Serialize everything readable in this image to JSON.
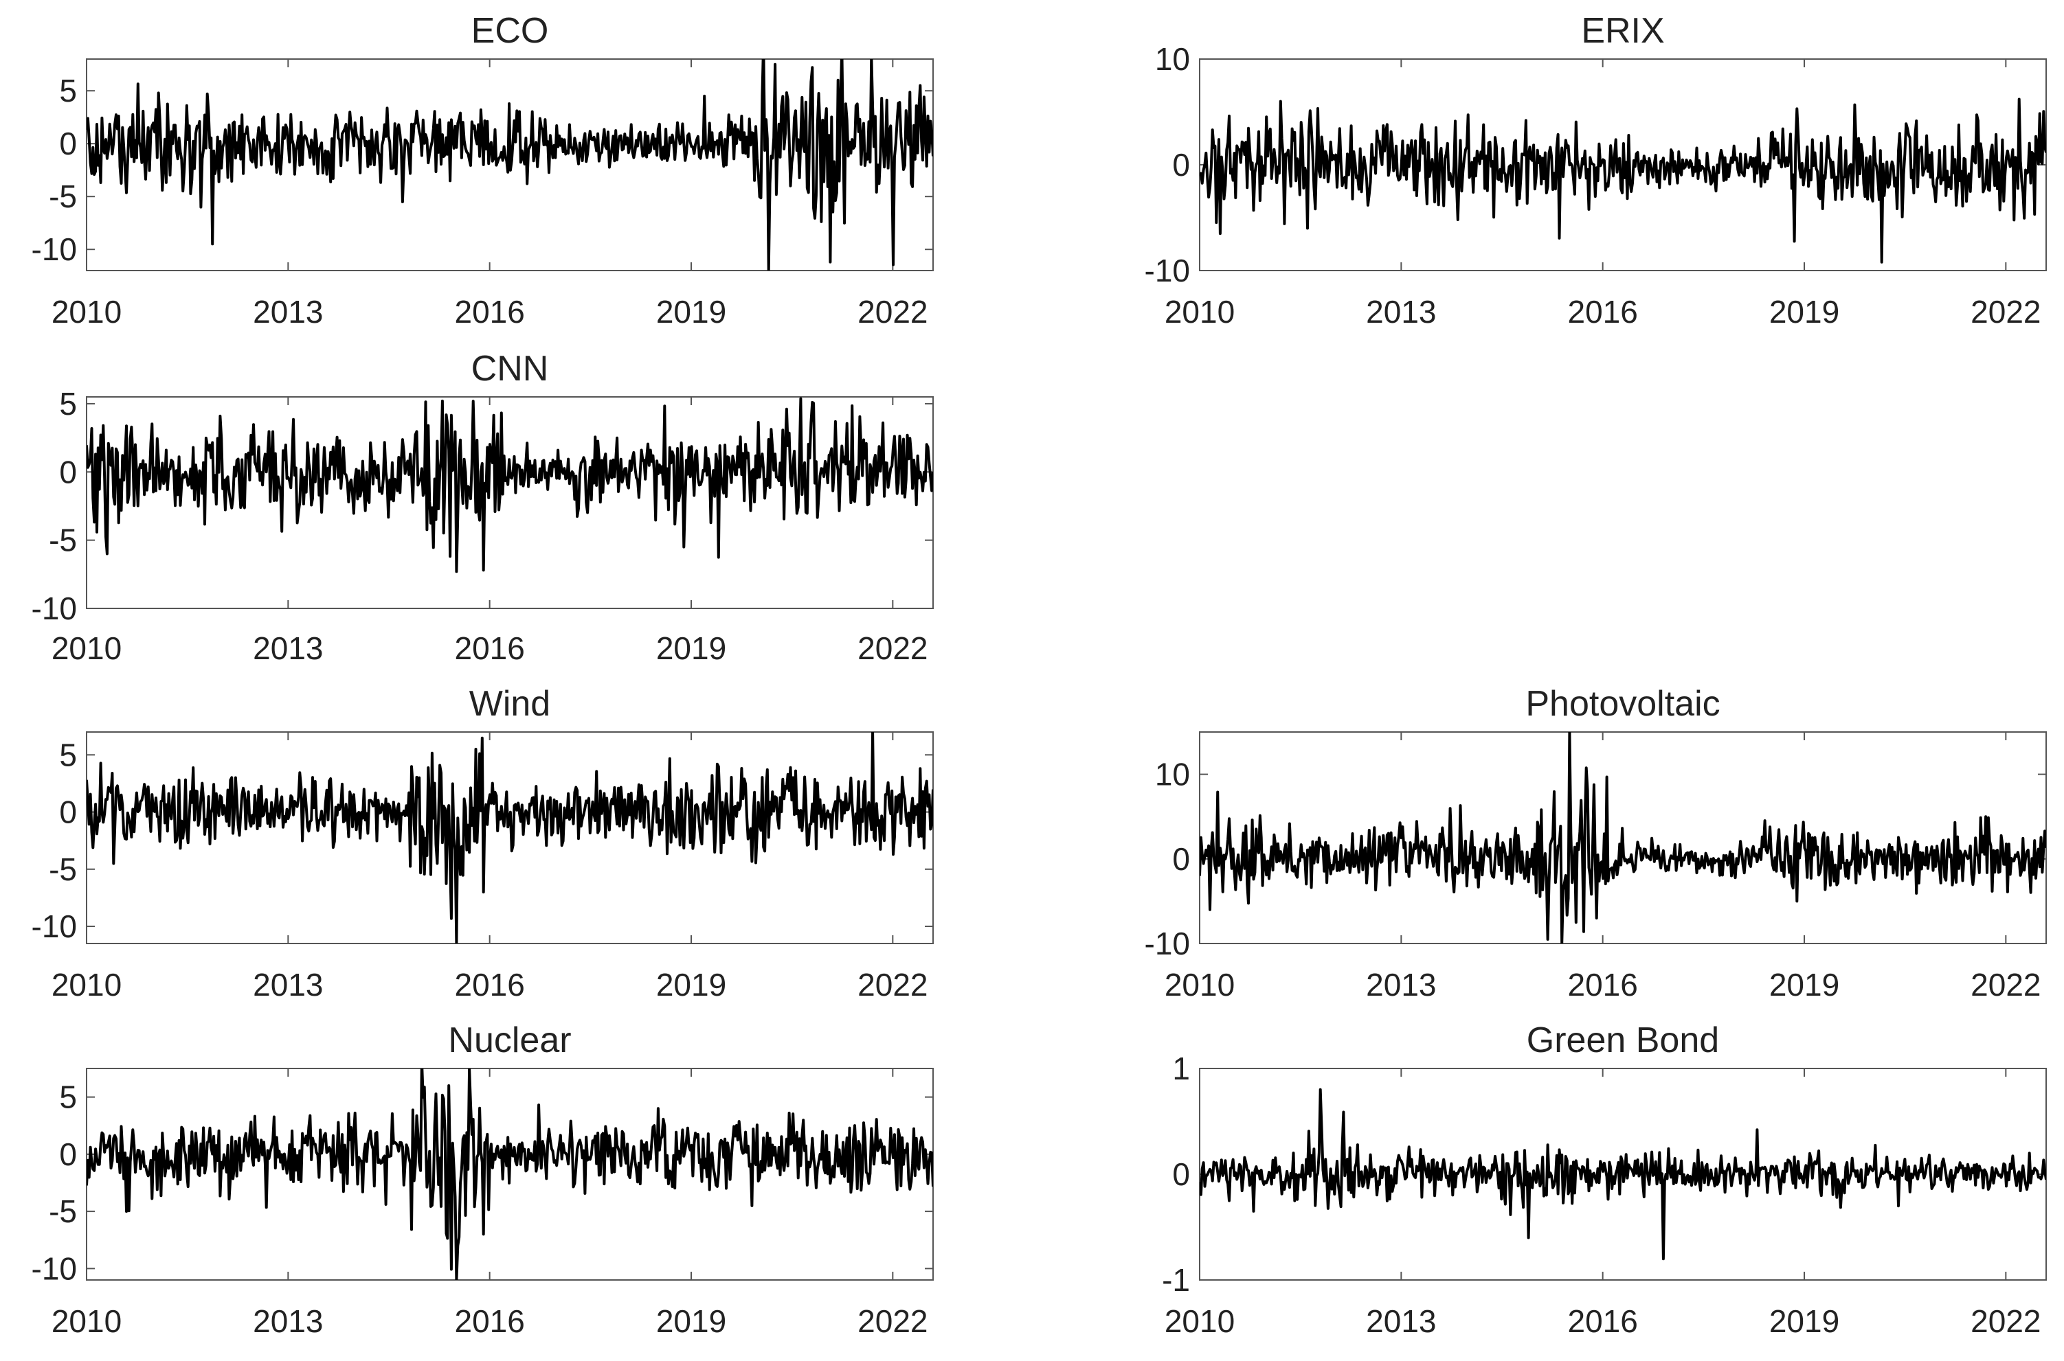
{
  "colors": {
    "line": "#000000",
    "axis": "#555555",
    "text": "#222222",
    "background": "#ffffff"
  },
  "chart_data": [
    {
      "type": "line",
      "title": "ECO",
      "panel": "left-row1",
      "xlim": [
        2010,
        2022.6
      ],
      "ylim": [
        -12,
        8
      ],
      "xticks": [
        "2010",
        "2013",
        "2016",
        "2019",
        "2022"
      ],
      "yticks": [
        "5",
        "0",
        "-5",
        "-10"
      ],
      "series_profile": {
        "base_amplitude": 1.7,
        "volatility_segments": [
          [
            2010,
            2011.5,
            2.2
          ],
          [
            2011.5,
            2012.2,
            2.4
          ],
          [
            2016,
            2016.5,
            2.0
          ],
          [
            2017,
            2019.5,
            1.0
          ],
          [
            2020.0,
            2021.3,
            3.4
          ],
          [
            2021.3,
            2022.6,
            2.6
          ]
        ],
        "extremes": [
          [
            2011.7,
            -6
          ],
          [
            2011.8,
            4.7
          ],
          [
            2014.7,
            -5.5
          ],
          [
            2019.2,
            4.5
          ],
          [
            2020.15,
            -12
          ],
          [
            2020.25,
            7.5
          ],
          [
            2020.8,
            7.2
          ],
          [
            2022.4,
            5.5
          ]
        ]
      }
    },
    {
      "type": "line",
      "title": "ERIX",
      "panel": "right-row1",
      "xlim": [
        2010,
        2022.6
      ],
      "ylim": [
        -10,
        10
      ],
      "xticks": [
        "2010",
        "2013",
        "2016",
        "2019",
        "2022"
      ],
      "yticks": [
        "10",
        "0",
        "-10"
      ],
      "series_profile": {
        "base_amplitude": 1.9,
        "volatility_segments": [
          [
            2010,
            2012,
            2.4
          ],
          [
            2016.5,
            2018.5,
            1.1
          ],
          [
            2020.2,
            2022.6,
            2.3
          ]
        ],
        "extremes": [
          [
            2010.3,
            -6.5
          ],
          [
            2011.2,
            6
          ],
          [
            2011.6,
            -6
          ],
          [
            2018.9,
            5.3
          ],
          [
            2020.15,
            -9.2
          ],
          [
            2022.2,
            6.2
          ]
        ]
      }
    },
    {
      "type": "line",
      "title": "CNN",
      "panel": "left-row2",
      "xlim": [
        2010,
        2022.6
      ],
      "ylim": [
        -10,
        5.5
      ],
      "xticks": [
        "2010",
        "2013",
        "2016",
        "2019",
        "2022"
      ],
      "yticks": [
        "5",
        "0",
        "-5",
        "-10"
      ],
      "series_profile": {
        "base_amplitude": 1.6,
        "volatility_segments": [
          [
            2010,
            2010.8,
            2.4
          ],
          [
            2015.0,
            2016.2,
            3.2
          ],
          [
            2016.2,
            2017.3,
            0.9
          ],
          [
            2020.3,
            2021.5,
            2.2
          ]
        ],
        "extremes": [
          [
            2010.3,
            -6
          ],
          [
            2015.3,
            5.2
          ],
          [
            2015.5,
            -7.3
          ],
          [
            2015.9,
            -7.2
          ],
          [
            2018.9,
            -5.5
          ],
          [
            2020.8,
            5.1
          ]
        ]
      }
    },
    {
      "type": "line",
      "title": "Wind",
      "panel": "left-row3",
      "xlim": [
        2010,
        2022.6
      ],
      "ylim": [
        -11.5,
        7
      ],
      "xticks": [
        "2010",
        "2013",
        "2016",
        "2019",
        "2022"
      ],
      "yticks": [
        "5",
        "0",
        "-5",
        "-10"
      ],
      "series_profile": {
        "base_amplitude": 1.5,
        "volatility_segments": [
          [
            2014.8,
            2015.9,
            3.3
          ],
          [
            2018.5,
            2022.6,
            2.0
          ]
        ],
        "extremes": [
          [
            2010.4,
            -4.5
          ],
          [
            2015.5,
            -11.5
          ],
          [
            2015.8,
            5.5
          ],
          [
            2015.9,
            -7
          ],
          [
            2021.7,
            7
          ],
          [
            2022.4,
            3.8
          ]
        ]
      }
    },
    {
      "type": "line",
      "title": "Photovoltaic",
      "panel": "right-row3",
      "xlim": [
        2010,
        2022.6
      ],
      "ylim": [
        -10,
        15
      ],
      "xticks": [
        "2010",
        "2013",
        "2016",
        "2019",
        "2022"
      ],
      "yticks": [
        "10",
        "0",
        "-10"
      ],
      "series_profile": {
        "base_amplitude": 1.8,
        "volatility_segments": [
          [
            2010,
            2011,
            2.3
          ],
          [
            2015.0,
            2016.1,
            4.5
          ],
          [
            2016.1,
            2018.2,
            1.0
          ],
          [
            2020.5,
            2022.6,
            2.0
          ]
        ],
        "extremes": [
          [
            2015.4,
            -10
          ],
          [
            2015.5,
            15
          ],
          [
            2015.6,
            -7.5
          ],
          [
            2015.9,
            -7
          ],
          [
            2018.9,
            -5
          ],
          [
            2021.7,
            5
          ]
        ]
      }
    },
    {
      "type": "line",
      "title": "Nuclear",
      "panel": "left-row4",
      "xlim": [
        2010,
        2022.6
      ],
      "ylim": [
        -11,
        7.5
      ],
      "xticks": [
        "2010",
        "2013",
        "2016",
        "2019",
        "2022"
      ],
      "yticks": [
        "5",
        "0",
        "-5",
        "-10"
      ],
      "series_profile": {
        "base_amplitude": 1.6,
        "volatility_segments": [
          [
            2014.8,
            2016.0,
            3.5
          ],
          [
            2016.0,
            2017.2,
            1.1
          ],
          [
            2019.8,
            2022.6,
            1.7
          ]
        ],
        "extremes": [
          [
            2010.6,
            -5
          ],
          [
            2015.4,
            6
          ],
          [
            2015.5,
            -11
          ],
          [
            2015.7,
            7.5
          ],
          [
            2015.9,
            -7
          ],
          [
            2019.9,
            -4.5
          ]
        ]
      }
    },
    {
      "type": "line",
      "title": "Green Bond",
      "panel": "right-row4",
      "xlim": [
        2010,
        2022.6
      ],
      "ylim": [
        -1,
        1
      ],
      "xticks": [
        "2010",
        "2013",
        "2016",
        "2019",
        "2022"
      ],
      "yticks": [
        "1",
        "0",
        "-1"
      ],
      "series_profile": {
        "base_amplitude": 0.11,
        "volatility_segments": [
          [
            2011.7,
            2012.4,
            0.17
          ],
          [
            2014.3,
            2015.6,
            0.17
          ],
          [
            2017.2,
            2022.6,
            0.09
          ]
        ],
        "extremes": [
          [
            2010.8,
            -0.35
          ],
          [
            2011.8,
            0.8
          ],
          [
            2014.9,
            -0.6
          ],
          [
            2016.9,
            -0.8
          ],
          [
            2018.3,
            0.42
          ],
          [
            2020.4,
            -0.3
          ]
        ]
      }
    }
  ]
}
